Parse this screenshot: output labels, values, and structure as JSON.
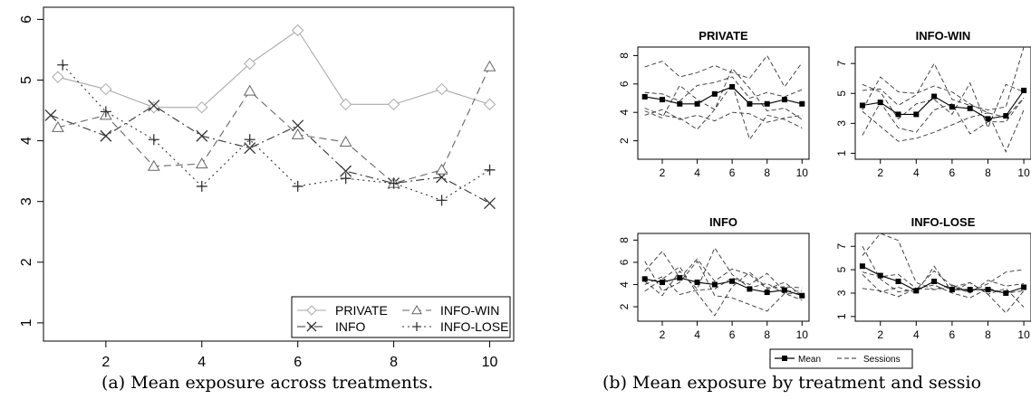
{
  "captions": {
    "a": "(a) Mean exposure across treatments.",
    "b": "(b) Mean exposure by treatment and sessio"
  },
  "chart_data": [
    {
      "id": "a",
      "type": "line",
      "title": "",
      "xlabel": "",
      "ylabel": "",
      "xlim": [
        0.7,
        10.5
      ],
      "ylim": [
        0.7,
        6.2
      ],
      "xticks": [
        2,
        4,
        6,
        8,
        10
      ],
      "yticks": [
        1,
        2,
        3,
        4,
        5,
        6
      ],
      "legend_position": "bottom-right",
      "series": [
        {
          "name": "PRIVATE",
          "marker": "diamond",
          "dash": "solid",
          "color": "#aaaaaa",
          "x": [
            1,
            2,
            3,
            4,
            5,
            6,
            7,
            8,
            9,
            10
          ],
          "y": [
            5.05,
            4.85,
            4.55,
            4.55,
            5.27,
            5.82,
            4.6,
            4.6,
            4.85,
            4.6
          ]
        },
        {
          "name": "INFO",
          "marker": "x",
          "dash": "dashdot",
          "color": "#333333",
          "x": [
            0.85,
            2,
            3,
            4,
            5,
            6,
            7,
            8,
            9,
            10
          ],
          "y": [
            4.42,
            4.08,
            4.58,
            4.08,
            3.88,
            4.25,
            3.5,
            3.3,
            3.4,
            2.97
          ]
        },
        {
          "name": "INFO-WIN",
          "marker": "triangle",
          "dash": "dashed",
          "color": "#666666",
          "x": [
            1,
            2,
            3,
            4,
            5,
            6,
            7,
            8,
            9,
            10
          ],
          "y": [
            4.22,
            4.42,
            3.58,
            3.62,
            4.82,
            4.1,
            3.98,
            3.3,
            3.52,
            5.22
          ]
        },
        {
          "name": "INFO-LOSE",
          "marker": "plus",
          "dash": "dotted",
          "color": "#333333",
          "x": [
            1.1,
            2,
            3,
            4,
            5,
            6,
            7,
            8,
            9,
            10
          ],
          "y": [
            5.25,
            4.48,
            4.02,
            3.25,
            4.02,
            3.25,
            3.38,
            3.3,
            3.02,
            3.52
          ]
        }
      ]
    },
    {
      "id": "b",
      "type": "line",
      "layout": "2x2 small multiples",
      "legend": {
        "position": "bottom-center",
        "entries": [
          "Mean",
          "Sessions"
        ]
      },
      "panels": [
        {
          "title": "PRIVATE",
          "xlim": [
            0.6,
            10.4
          ],
          "ylim": [
            0.7,
            8.6
          ],
          "xticks": [
            2,
            4,
            6,
            8,
            10
          ],
          "yticks": [
            2,
            4,
            6,
            8
          ],
          "mean": [
            5.1,
            4.9,
            4.6,
            4.6,
            5.3,
            5.8,
            4.6,
            4.6,
            4.9,
            4.6
          ],
          "sessions": [
            [
              7.2,
              7.6,
              6.5,
              6.8,
              7.3,
              6.8,
              6.4,
              8.0,
              5.8,
              7.5
            ],
            [
              5.4,
              5.3,
              4.8,
              5.9,
              6.1,
              6.5,
              5.0,
              5.4,
              5.1,
              5.6
            ],
            [
              4.3,
              3.8,
              3.6,
              2.8,
              4.2,
              7.1,
              5.7,
              4.1,
              4.3,
              3.5
            ],
            [
              4.1,
              3.6,
              5.9,
              4.9,
              4.2,
              6.0,
              2.1,
              3.8,
              3.5,
              2.9
            ],
            [
              3.8,
              4.2,
              3.5,
              3.8,
              3.4,
              4.0,
              3.9,
              3.3,
              3.6,
              3.8
            ]
          ]
        },
        {
          "title": "INFO-WIN",
          "xlim": [
            0.6,
            10.4
          ],
          "ylim": [
            0.6,
            8.1
          ],
          "xticks": [
            2,
            4,
            6,
            8,
            10
          ],
          "yticks": [
            1,
            3,
            5,
            7
          ],
          "mean": [
            4.2,
            4.4,
            3.6,
            3.6,
            4.8,
            4.1,
            4.0,
            3.3,
            3.5,
            5.2
          ],
          "sessions": [
            [
              5.2,
              5.3,
              4.2,
              4.9,
              7.0,
              4.6,
              4.2,
              3.9,
              4.1,
              8.1
            ],
            [
              5.6,
              5.1,
              3.3,
              4.3,
              4.6,
              3.6,
              5.7,
              2.7,
              5.6,
              5.1
            ],
            [
              3.8,
              2.8,
              1.8,
              2.0,
              2.4,
              2.9,
              3.4,
              3.7,
              1.1,
              3.9
            ],
            [
              2.2,
              4.4,
              2.7,
              2.4,
              3.9,
              4.3,
              2.3,
              3.1,
              3.1,
              4.7
            ],
            [
              3.9,
              6.1,
              5.1,
              5.0,
              5.5,
              5.1,
              4.3,
              3.7,
              3.4,
              4.7
            ]
          ]
        },
        {
          "title": "INFO",
          "xlim": [
            0.6,
            10.4
          ],
          "ylim": [
            0.7,
            8.6
          ],
          "xticks": [
            2,
            4,
            6,
            8,
            10
          ],
          "yticks": [
            2,
            4,
            6,
            8
          ],
          "mean": [
            4.5,
            4.2,
            4.6,
            4.2,
            4.0,
            4.3,
            3.6,
            3.3,
            3.5,
            3.0
          ],
          "sessions": [
            [
              5.2,
              7.0,
              4.6,
              6.3,
              4.3,
              5.4,
              4.9,
              3.6,
              4.2,
              3.0
            ],
            [
              4.3,
              3.0,
              5.2,
              3.6,
              7.3,
              4.9,
              3.7,
              4.1,
              3.2,
              3.2
            ],
            [
              3.4,
              4.5,
              5.6,
              3.2,
              1.2,
              3.8,
              5.1,
              3.7,
              3.8,
              3.7
            ],
            [
              6.1,
              3.4,
              4.2,
              6.1,
              3.0,
              2.8,
              2.2,
              1.6,
              3.2,
              2.6
            ],
            [
              4.0,
              4.7,
              3.1,
              3.5,
              3.6,
              4.6,
              4.0,
              5.0,
              3.4,
              3.4
            ]
          ]
        },
        {
          "title": "INFO-LOSE",
          "xlim": [
            0.6,
            10.4
          ],
          "ylim": [
            0.6,
            8.1
          ],
          "xticks": [
            2,
            4,
            6,
            8,
            10
          ],
          "yticks": [
            1,
            3,
            5,
            7
          ],
          "mean": [
            5.3,
            4.5,
            4.0,
            3.2,
            4.0,
            3.3,
            3.3,
            3.3,
            3.0,
            3.5
          ],
          "sessions": [
            [
              6.2,
              8.1,
              7.5,
              3.9,
              3.3,
              3.7,
              3.1,
              3.8,
              4.8,
              5.0
            ],
            [
              7.0,
              4.2,
              3.1,
              3.3,
              4.9,
              3.6,
              3.0,
              4.1,
              3.6,
              3.8
            ],
            [
              4.6,
              3.1,
              3.5,
              3.0,
              5.3,
              3.1,
              3.9,
              2.9,
              1.3,
              3.2
            ],
            [
              3.4,
              3.2,
              2.7,
              3.4,
              3.3,
              3.5,
              3.9,
              2.9,
              3.4,
              1.8
            ],
            [
              4.8,
              4.4,
              4.6,
              3.4,
              3.7,
              3.0,
              2.6,
              3.4,
              3.0,
              3.2
            ]
          ]
        }
      ]
    }
  ]
}
